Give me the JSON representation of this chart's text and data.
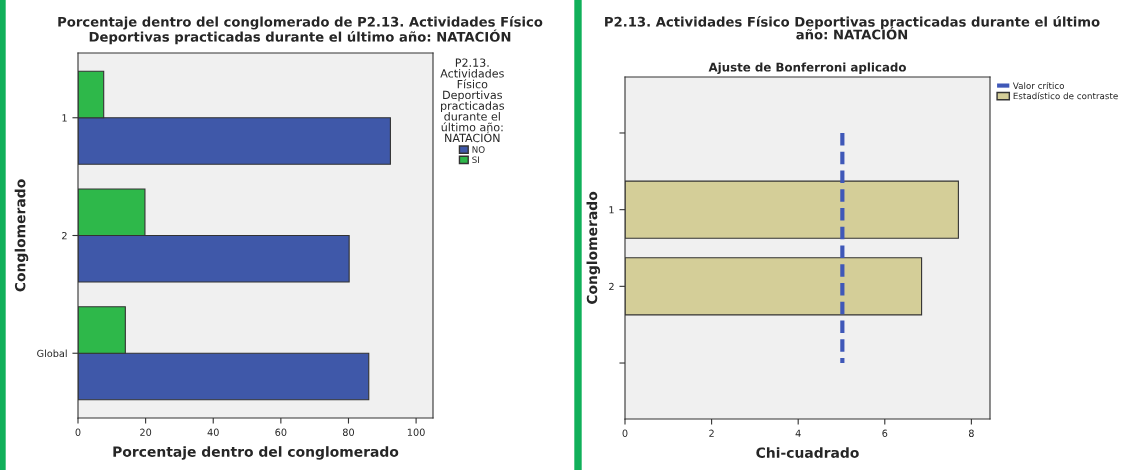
{
  "chart_data": [
    {
      "type": "bar",
      "orientation": "horizontal",
      "title": "Porcentaje dentro del conglomerado de P2.13. Actividades Físico Deportivas practicadas durante el último año: NATACIÓN",
      "xlabel": "Porcentaje dentro del conglomerado",
      "ylabel": "Conglomerado",
      "legend_title": "P2.13. Actividades Físico Deportivas practicadas durante el último año: NATACIÓN",
      "legend": "right",
      "categories": [
        "1",
        "2",
        "Global"
      ],
      "series": [
        {
          "name": "NO",
          "color": "#3f58a9",
          "values": [
            92.4,
            80.2,
            86.0
          ]
        },
        {
          "name": "SI",
          "color": "#2eb84a",
          "values": [
            7.6,
            19.8,
            14.0
          ]
        }
      ],
      "xlim": [
        0,
        105
      ],
      "xticks": [
        0,
        20,
        40,
        60,
        80,
        100
      ]
    },
    {
      "type": "bar",
      "orientation": "horizontal",
      "title": "P2.13. Actividades Físico Deportivas practicadas durante el último año: NATACIÓN",
      "subtitle": "Ajuste de Bonferroni aplicado",
      "xlabel": "Chi-cuadrado",
      "ylabel": "Conglomerado",
      "legend": "right",
      "categories": [
        null,
        "1",
        "2",
        null
      ],
      "series": [
        {
          "name": "Estadístico de contraste",
          "color": "#d4ce98",
          "values": [
            null,
            7.7,
            6.85,
            null
          ]
        }
      ],
      "ref_lines": [
        {
          "axis": "x",
          "value": 5.02,
          "label": "Valor crítico",
          "color": "#3f58b8",
          "line_style": "dashed"
        }
      ],
      "xlim": [
        0,
        8.43
      ],
      "xticks": [
        0,
        2,
        4,
        6,
        8
      ]
    }
  ]
}
